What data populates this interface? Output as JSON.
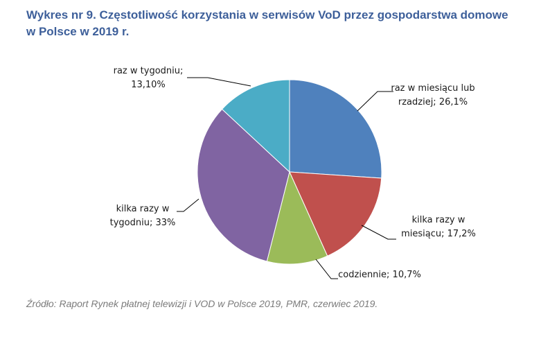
{
  "title_line1": "Wykres nr 9. Częstotliwość korzystania w serwisów VoD przez gospodarstwa domowe",
  "title_line2": "w Polsce w 2019 r.",
  "source": "Źródło: Raport Rynek płatnej telewizji i VOD w Polsce 2019, PMR, czerwiec 2019.",
  "chart_data": {
    "type": "pie",
    "slices": [
      {
        "value": 26.1,
        "color": "#4f81bd",
        "label_lines": [
          "raz w miesiącu lub",
          "rzadziej; 26,1%"
        ]
      },
      {
        "value": 17.2,
        "color": "#c0504d",
        "label_lines": [
          "kilka razy w",
          "miesiącu; 17,2%"
        ]
      },
      {
        "value": 10.7,
        "color": "#9bbb59",
        "label_lines": [
          "codziennie; 10,7%"
        ]
      },
      {
        "value": 33.0,
        "color": "#8064a2",
        "label_lines": [
          "kilka razy w",
          "tygodniu; 33%"
        ]
      },
      {
        "value": 13.1,
        "color": "#4bacc6",
        "label_lines": [
          "raz w tygodniu;",
          "13,10%"
        ]
      }
    ]
  }
}
